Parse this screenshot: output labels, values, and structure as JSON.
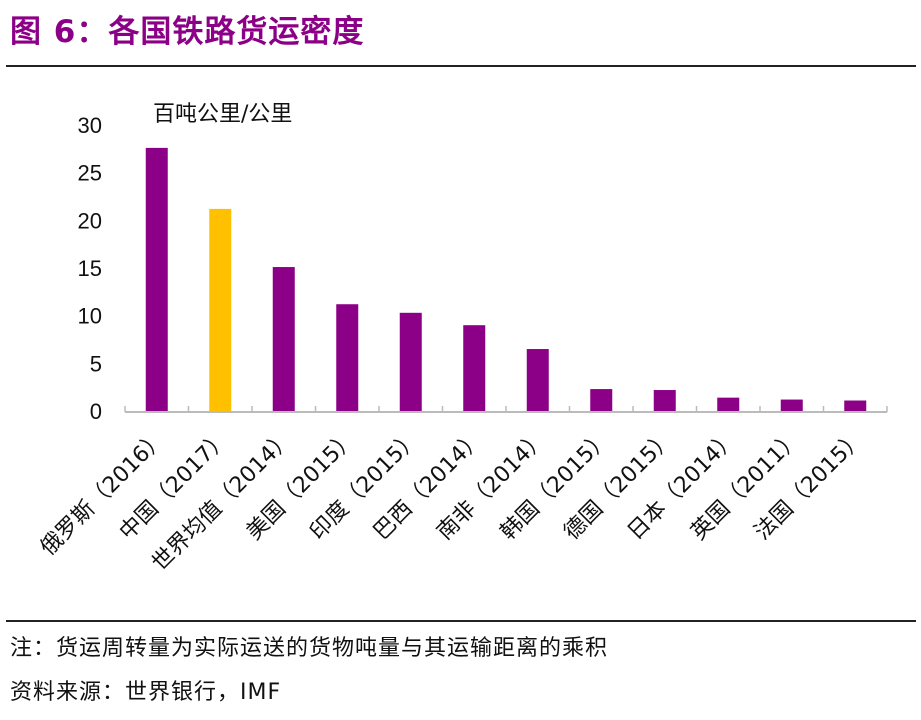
{
  "title": "图 6：各国铁路货运密度",
  "chart_data": {
    "type": "bar",
    "title": "",
    "ylabel": "百吨公里/公里",
    "xlabel": "",
    "ylim": [
      0,
      30
    ],
    "yticks": [
      0,
      5,
      10,
      15,
      20,
      25,
      30
    ],
    "grid": false,
    "categories": [
      "俄罗斯（2016）",
      "中国（2017）",
      "世界均值（2014）",
      "美国（2015）",
      "印度（2015）",
      "巴西（2014）",
      "南非（2014）",
      "韩国（2015）",
      "德国（2015）",
      "日本（2014）",
      "英国（2011）",
      "法国（2015）"
    ],
    "values": [
      27.6,
      21.2,
      15.1,
      11.2,
      10.3,
      9.0,
      6.5,
      2.3,
      2.2,
      1.4,
      1.2,
      1.1
    ],
    "colors": {
      "default": "#8B0086",
      "highlight": "#FFC000"
    },
    "highlight_index": 1
  },
  "notes": {
    "note": "注：货运周转量为实际运送的货物吨量与其运输距离的乘积",
    "source": "资料来源：世界银行，IMF"
  }
}
